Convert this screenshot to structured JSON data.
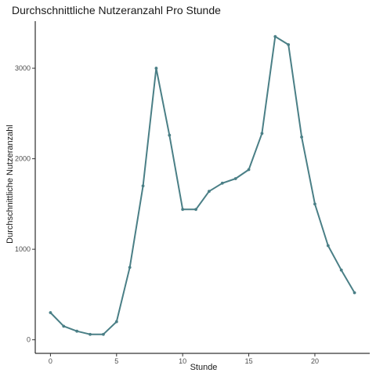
{
  "chart_data": {
    "type": "line",
    "title": "Durchschnittliche Nutzeranzahl Pro Stunde",
    "xlabel": "Stunde",
    "ylabel": "Durchschnittliche Nutzeranzahl",
    "xlim": [
      -1.15,
      24.15
    ],
    "ylim": [
      -150,
      3520
    ],
    "x_ticks": [
      0,
      5,
      10,
      15,
      20
    ],
    "y_ticks": [
      0,
      1000,
      2000,
      3000
    ],
    "grid": false,
    "legend": "none",
    "line_color": "#4a7f86",
    "series": [
      {
        "x": [
          0,
          1,
          2,
          3,
          4,
          5,
          6,
          7,
          8,
          9,
          10,
          11,
          12,
          13,
          14,
          15,
          16,
          17,
          18,
          19,
          20,
          21,
          22,
          23
        ],
        "values": [
          300,
          150,
          95,
          60,
          60,
          200,
          800,
          1700,
          3000,
          2260,
          1440,
          1440,
          1640,
          1730,
          1780,
          1880,
          2280,
          3350,
          3260,
          2240,
          1500,
          1040,
          770,
          520
        ]
      }
    ]
  }
}
